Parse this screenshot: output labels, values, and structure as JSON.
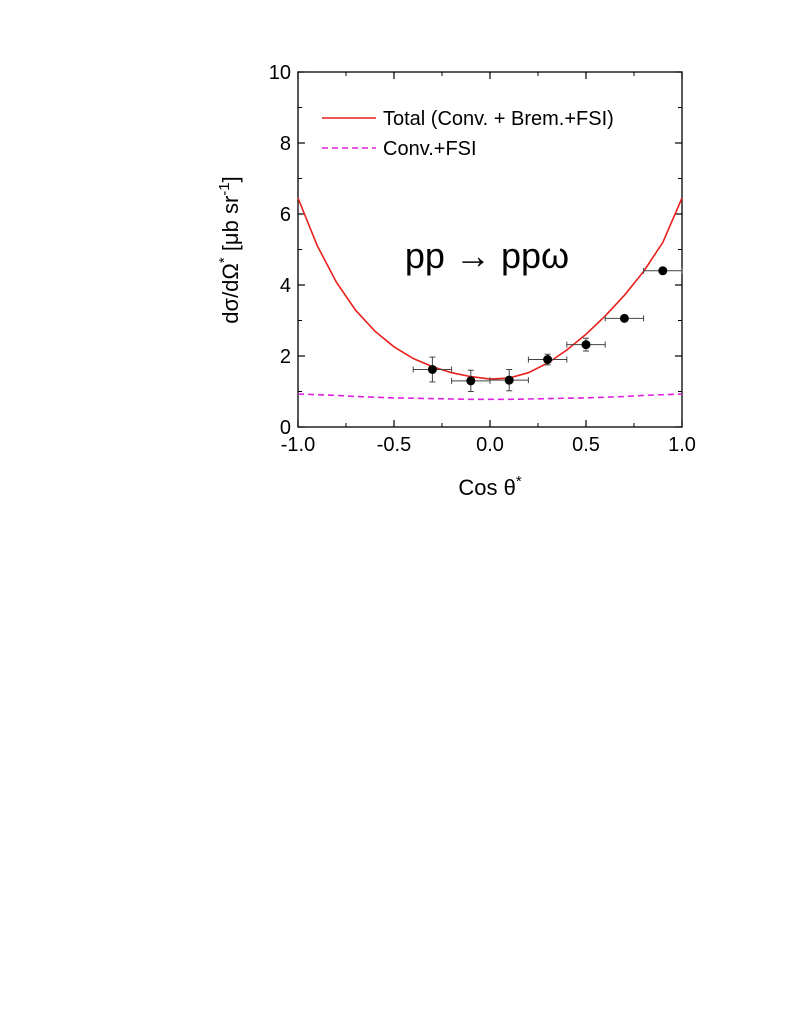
{
  "chart_data": {
    "type": "scatter",
    "xlabel": "Cos θ*",
    "ylabel": "dσ/dΩ* [μb sr⁻¹]",
    "xlim": [
      -1.0,
      1.0
    ],
    "ylim": [
      0,
      10
    ],
    "x_ticks": [
      "-1.0",
      "-0.5",
      "0.0",
      "0.5",
      "1.0"
    ],
    "x_tick_values": [
      -1.0,
      -0.5,
      0.0,
      0.5,
      1.0
    ],
    "y_ticks": [
      "0",
      "2",
      "4",
      "6",
      "8",
      "10"
    ],
    "y_tick_values": [
      0,
      2,
      4,
      6,
      8,
      10
    ],
    "annotation": "pp → ppω",
    "legend": {
      "placement": "top-left",
      "entries": [
        {
          "label": "Total (Conv. + Brem.+FSI)",
          "color": "#e8201c",
          "style": "solid"
        },
        {
          "label": "Conv.+FSI",
          "color": "#e020e0",
          "style": "dashed"
        }
      ]
    },
    "data_points": [
      {
        "x": -0.3,
        "y": 1.62,
        "xerr": 0.1,
        "yerr": 0.35
      },
      {
        "x": -0.1,
        "y": 1.3,
        "xerr": 0.1,
        "yerr": 0.3
      },
      {
        "x": 0.1,
        "y": 1.32,
        "xerr": 0.1,
        "yerr": 0.3
      },
      {
        "x": 0.3,
        "y": 1.9,
        "xerr": 0.1,
        "yerr": 0.15
      },
      {
        "x": 0.5,
        "y": 2.32,
        "xerr": 0.1,
        "yerr": 0.18
      },
      {
        "x": 0.7,
        "y": 3.06,
        "xerr": 0.1,
        "yerr": 0.05
      },
      {
        "x": 0.9,
        "y": 4.4,
        "xerr": 0.1,
        "yerr": 0.05
      }
    ],
    "series": [
      {
        "name": "Total (Conv. + Brem.+FSI)",
        "color": "#e8201c",
        "style": "solid",
        "x": [
          -1.0,
          -0.9,
          -0.8,
          -0.7,
          -0.6,
          -0.5,
          -0.4,
          -0.3,
          -0.2,
          -0.1,
          0.0,
          0.1,
          0.2,
          0.3,
          0.4,
          0.5,
          0.6,
          0.7,
          0.8,
          0.9,
          1.0
        ],
        "y": [
          6.45,
          5.11,
          4.08,
          3.29,
          2.7,
          2.26,
          1.93,
          1.7,
          1.53,
          1.42,
          1.35,
          1.38,
          1.53,
          1.8,
          2.17,
          2.61,
          3.13,
          3.71,
          4.38,
          5.2,
          6.45
        ]
      },
      {
        "name": "Conv.+FSI",
        "color": "#e020e0",
        "style": "dashed",
        "x": [
          -1.0,
          -0.9,
          -0.8,
          -0.7,
          -0.6,
          -0.5,
          -0.4,
          -0.3,
          -0.2,
          -0.1,
          0.0,
          0.1,
          0.2,
          0.3,
          0.4,
          0.5,
          0.6,
          0.7,
          0.8,
          0.9,
          1.0
        ],
        "y": [
          0.93,
          0.91,
          0.89,
          0.86,
          0.84,
          0.82,
          0.81,
          0.8,
          0.79,
          0.78,
          0.78,
          0.78,
          0.79,
          0.8,
          0.81,
          0.82,
          0.84,
          0.86,
          0.89,
          0.91,
          0.93
        ]
      }
    ]
  }
}
